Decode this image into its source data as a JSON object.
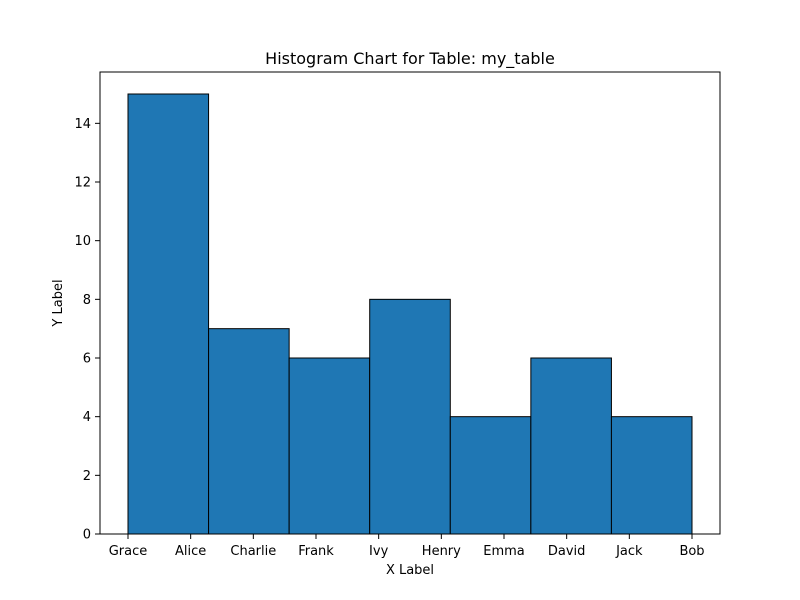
{
  "chart_data": {
    "type": "bar",
    "title": "Histogram Chart for Table: my_table",
    "xlabel": "X Label",
    "ylabel": "Y Label",
    "x_tick_labels": [
      "Grace",
      "Alice",
      "Charlie",
      "Frank",
      "Ivy",
      "Henry",
      "Emma",
      "David",
      "Jack",
      "Bob"
    ],
    "bins": [
      {
        "value": 15
      },
      {
        "value": 7
      },
      {
        "value": 6
      },
      {
        "value": 8
      },
      {
        "value": 4
      },
      {
        "value": 6
      },
      {
        "value": 4
      }
    ],
    "y_ticks": [
      0,
      2,
      4,
      6,
      8,
      10,
      12,
      14
    ],
    "ylim": [
      0,
      15.75
    ],
    "grid": false,
    "colors": {
      "bar_fill": "#1f77b4",
      "bar_edge": "#000000"
    }
  }
}
